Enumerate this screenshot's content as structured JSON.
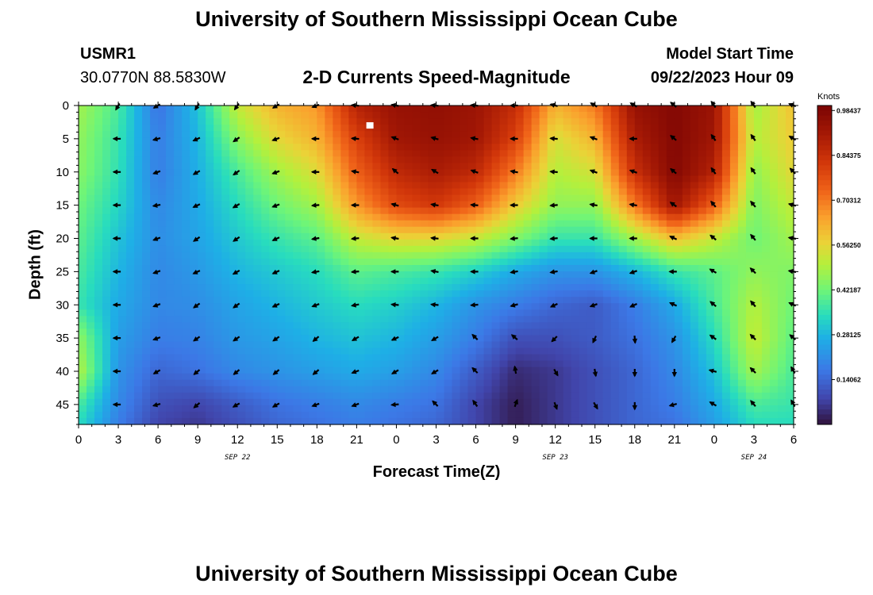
{
  "page": {
    "title": "University of Southern Mississippi Ocean Cube",
    "station_id": "USMR1",
    "station_coords": "30.0770N  88.5830W",
    "subtitle": "2-D Currents Speed-Magnitude",
    "model_start_label": "Model Start Time",
    "model_start_value": "09/22/2023 Hour 09",
    "bottom_title": "University of Southern Mississippi Ocean Cube"
  },
  "chart_data": {
    "type": "heatmap",
    "title": "2-D Currents Speed-Magnitude",
    "xlabel": "Forecast Time(Z)",
    "ylabel": "Depth (ft)",
    "x_tick_labels": [
      "0",
      "3",
      "6",
      "9",
      "12",
      "15",
      "18",
      "21",
      "0",
      "3",
      "6",
      "9",
      "12",
      "15",
      "18",
      "21",
      "0",
      "3",
      "6"
    ],
    "date_labels": [
      {
        "text": "SEP 22",
        "hour_index": 12
      },
      {
        "text": "SEP 23",
        "hour_index": 36
      },
      {
        "text": "SEP 24",
        "hour_index": 51
      }
    ],
    "xlim_hours": [
      0,
      54
    ],
    "y_ticks": [
      0,
      5,
      10,
      15,
      20,
      25,
      30,
      35,
      40,
      45
    ],
    "ylim": [
      0,
      48
    ],
    "y_inverted": true,
    "colorbar": {
      "title": "Knots",
      "tick_labels": [
        "0.98437",
        "0.84375",
        "0.70312",
        "0.56250",
        "0.42187",
        "0.28125",
        "0.14062"
      ],
      "tick_values": [
        0.98437,
        0.84375,
        0.70312,
        0.5625,
        0.42187,
        0.28125,
        0.14062
      ],
      "range": [
        0,
        1.0
      ]
    },
    "marker": {
      "hour": 22,
      "depth": 3
    },
    "speed_grid": {
      "hours": [
        0,
        3,
        6,
        9,
        12,
        15,
        18,
        21,
        24,
        27,
        30,
        33,
        36,
        39,
        42,
        45,
        48,
        51,
        54
      ],
      "depths": [
        0,
        5,
        10,
        15,
        20,
        25,
        30,
        35,
        40,
        45,
        48
      ],
      "values": [
        [
          0.48,
          0.38,
          0.16,
          0.3,
          0.52,
          0.62,
          0.66,
          0.88,
          0.94,
          0.95,
          0.93,
          0.85,
          0.62,
          0.7,
          0.94,
          0.98,
          0.93,
          0.48,
          0.6
        ],
        [
          0.46,
          0.36,
          0.18,
          0.28,
          0.45,
          0.56,
          0.62,
          0.8,
          0.92,
          0.94,
          0.92,
          0.8,
          0.54,
          0.62,
          0.9,
          0.98,
          0.92,
          0.5,
          0.58
        ],
        [
          0.45,
          0.35,
          0.18,
          0.27,
          0.38,
          0.48,
          0.55,
          0.74,
          0.86,
          0.9,
          0.86,
          0.7,
          0.5,
          0.54,
          0.84,
          0.98,
          0.88,
          0.46,
          0.56
        ],
        [
          0.42,
          0.33,
          0.2,
          0.26,
          0.34,
          0.42,
          0.48,
          0.66,
          0.78,
          0.82,
          0.74,
          0.58,
          0.46,
          0.46,
          0.7,
          0.92,
          0.74,
          0.44,
          0.52
        ],
        [
          0.4,
          0.3,
          0.21,
          0.25,
          0.31,
          0.36,
          0.4,
          0.52,
          0.56,
          0.56,
          0.52,
          0.44,
          0.36,
          0.36,
          0.48,
          0.6,
          0.52,
          0.42,
          0.48
        ],
        [
          0.38,
          0.28,
          0.2,
          0.23,
          0.28,
          0.31,
          0.34,
          0.4,
          0.38,
          0.36,
          0.32,
          0.26,
          0.22,
          0.22,
          0.28,
          0.36,
          0.4,
          0.46,
          0.44
        ],
        [
          0.36,
          0.26,
          0.2,
          0.21,
          0.25,
          0.28,
          0.31,
          0.34,
          0.32,
          0.28,
          0.22,
          0.18,
          0.14,
          0.12,
          0.18,
          0.26,
          0.38,
          0.5,
          0.42
        ],
        [
          0.46,
          0.24,
          0.18,
          0.19,
          0.23,
          0.25,
          0.28,
          0.3,
          0.28,
          0.24,
          0.18,
          0.1,
          0.1,
          0.12,
          0.16,
          0.22,
          0.34,
          0.52,
          0.4
        ],
        [
          0.5,
          0.22,
          0.14,
          0.16,
          0.2,
          0.22,
          0.24,
          0.26,
          0.24,
          0.2,
          0.12,
          0.04,
          0.06,
          0.1,
          0.14,
          0.2,
          0.3,
          0.48,
          0.38
        ],
        [
          0.38,
          0.2,
          0.1,
          0.08,
          0.12,
          0.16,
          0.18,
          0.2,
          0.18,
          0.16,
          0.08,
          0.02,
          0.06,
          0.1,
          0.14,
          0.18,
          0.26,
          0.38,
          0.36
        ],
        [
          0.34,
          0.18,
          0.08,
          0.06,
          0.1,
          0.14,
          0.16,
          0.18,
          0.16,
          0.14,
          0.08,
          0.02,
          0.06,
          0.1,
          0.14,
          0.16,
          0.24,
          0.34,
          0.34
        ]
      ]
    },
    "vectors": {
      "hours": [
        3,
        6,
        9,
        12,
        15,
        18,
        21,
        24,
        27,
        30,
        33,
        36,
        39,
        42,
        45,
        48,
        51,
        54
      ],
      "depths": [
        0,
        5,
        10,
        15,
        20,
        25,
        30,
        35,
        40,
        45
      ],
      "direction_deg": [
        [
          240,
          210,
          240,
          235,
          210,
          200,
          175,
          170,
          175,
          175,
          180,
          165,
          150,
          150,
          140,
          125,
          125,
          160
        ],
        [
          180,
          195,
          205,
          215,
          200,
          180,
          175,
          160,
          165,
          170,
          180,
          175,
          160,
          180,
          140,
          125,
          125,
          150
        ],
        [
          180,
          200,
          210,
          215,
          200,
          180,
          170,
          140,
          150,
          160,
          170,
          175,
          160,
          160,
          140,
          125,
          125,
          135
        ],
        [
          180,
          190,
          205,
          210,
          200,
          185,
          180,
          165,
          170,
          175,
          180,
          185,
          170,
          170,
          145,
          130,
          130,
          165
        ],
        [
          180,
          200,
          215,
          215,
          205,
          190,
          185,
          170,
          175,
          180,
          185,
          185,
          180,
          180,
          155,
          140,
          130,
          170
        ],
        [
          180,
          200,
          205,
          210,
          205,
          190,
          185,
          180,
          170,
          180,
          190,
          190,
          200,
          200,
          180,
          150,
          135,
          170
        ],
        [
          180,
          200,
          215,
          215,
          205,
          200,
          190,
          175,
          175,
          185,
          195,
          205,
          200,
          205,
          155,
          140,
          130,
          155
        ],
        [
          180,
          200,
          215,
          215,
          215,
          220,
          210,
          205,
          210,
          135,
          140,
          225,
          245,
          275,
          240,
          145,
          135,
          140
        ],
        [
          180,
          210,
          220,
          220,
          220,
          220,
          200,
          210,
          210,
          135,
          100,
          300,
          280,
          270,
          270,
          165,
          135,
          120
        ],
        [
          180,
          195,
          220,
          210,
          210,
          200,
          200,
          185,
          135,
          125,
          70,
          290,
          300,
          270,
          195,
          150,
          130,
          120
        ]
      ]
    }
  }
}
